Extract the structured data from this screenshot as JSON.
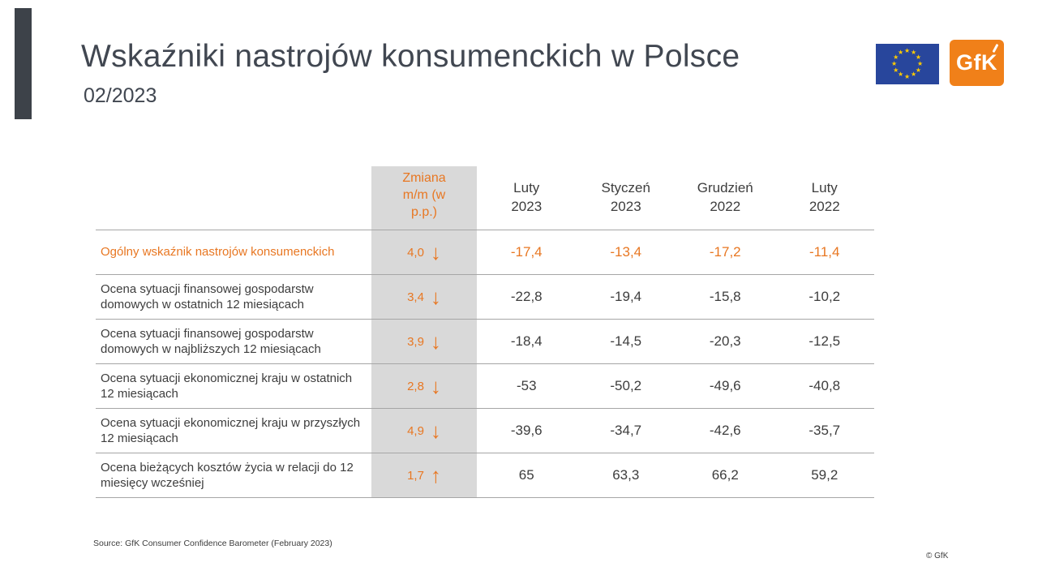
{
  "slide": {
    "title": "Wskaźniki nastrojów konsumenckich w Polsce",
    "subtitle": "02/2023",
    "source": "Source: GfK Consumer Confidence Barometer (February 2023)",
    "copyright": "© GfK"
  },
  "logos": {
    "gfk_label": "GfK"
  },
  "colors": {
    "accent_orange": "#e87722",
    "change_column_bg": "#d9d9d9",
    "text_dark": "#3d3d3d",
    "title_gray": "#414751",
    "sidebar_dark": "#3d4249",
    "eu_blue": "#28469c",
    "eu_star_yellow": "#ffcc00",
    "gfk_logo_orange": "#f08019"
  },
  "table": {
    "change_header": "Zmiana m/m (w p.p.)",
    "period_headers": [
      "Luty\n2023",
      "Styczeń\n2023",
      "Grudzień\n2022",
      "Luty\n2022"
    ],
    "rows": [
      {
        "label": "Ogólny wskaźnik nastrojów konsumenckich",
        "change": "4,0",
        "arrow": "↓",
        "direction": "down",
        "values": [
          "-17,4",
          "-13,4",
          "-17,2",
          "-11,4"
        ]
      },
      {
        "label": "Ocena sytuacji finansowej gospodarstw domowych w ostatnich 12 miesiącach",
        "change": "3,4",
        "arrow": "↓",
        "direction": "down",
        "values": [
          "-22,8",
          "-19,4",
          "-15,8",
          "-10,2"
        ]
      },
      {
        "label": "Ocena sytuacji finansowej gospodarstw domowych w najbliższych 12 miesiącach",
        "change": "3,9",
        "arrow": "↓",
        "direction": "down",
        "values": [
          "-18,4",
          "-14,5",
          "-20,3",
          "-12,5"
        ]
      },
      {
        "label": "Ocena sytuacji ekonomicznej kraju w ostatnich 12 miesiącach",
        "change": "2,8",
        "arrow": "↓",
        "direction": "down",
        "values": [
          "-53",
          "-50,2",
          "-49,6",
          "-40,8"
        ]
      },
      {
        "label": "Ocena sytuacji ekonomicznej kraju w przyszłych 12 miesiącach",
        "change": "4,9",
        "arrow": "↓",
        "direction": "down",
        "values": [
          "-39,6",
          "-34,7",
          "-42,6",
          "-35,7"
        ]
      },
      {
        "label": "Ocena bieżących kosztów życia w relacji do 12 miesięcy wcześniej",
        "change": "1,7",
        "arrow": "↑",
        "direction": "up",
        "values": [
          "65",
          "63,3",
          "66,2",
          "59,2"
        ]
      }
    ]
  }
}
